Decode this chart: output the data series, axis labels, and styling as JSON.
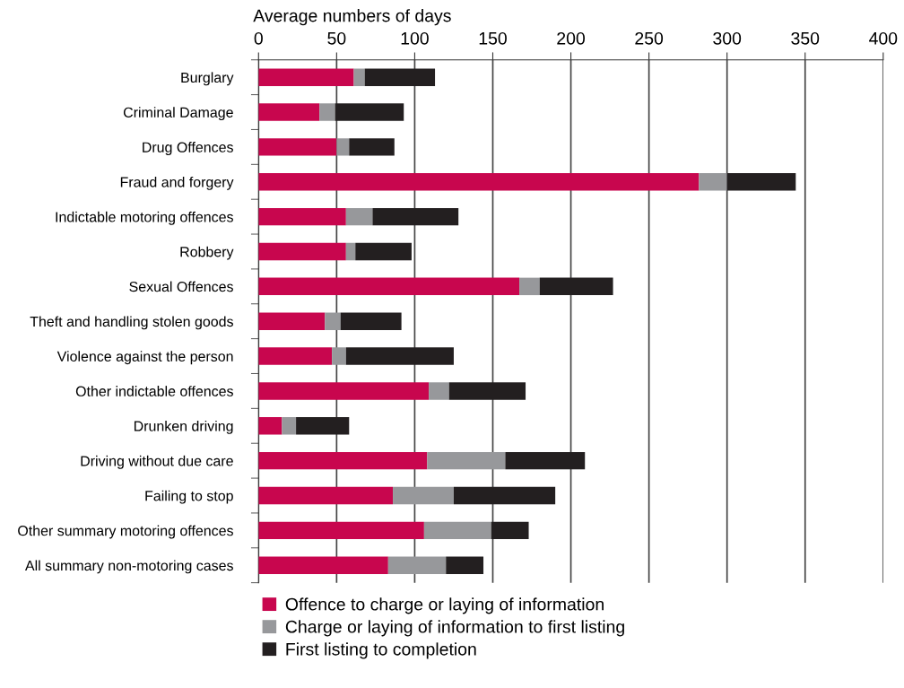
{
  "chart_data": {
    "type": "bar",
    "orientation": "horizontal",
    "stacked": true,
    "xlabel": "Average numbers of days",
    "categories": [
      "Burglary",
      "Criminal Damage",
      "Drug Offences",
      "Fraud and forgery",
      "Indictable motoring offences",
      "Robbery",
      "Sexual Offences",
      "Theft and handling stolen goods",
      "Violence against the person",
      "Other indictable offences",
      "Drunken driving",
      "Driving without due care",
      "Failing to stop",
      "Other summary motoring offences",
      "All summary non-motoring cases"
    ],
    "series": [
      {
        "name": "Offence to charge or laying of information",
        "color": "#c8064e",
        "values": [
          61,
          39,
          50,
          282,
          56,
          56,
          167,
          42.5,
          47,
          109,
          15,
          108,
          86,
          106,
          83
        ]
      },
      {
        "name": "Charge or laying of information to first listing",
        "color": "#97989b",
        "values": [
          7,
          10,
          8,
          18,
          17,
          6,
          13,
          10,
          9,
          13,
          9,
          50,
          39,
          43,
          37
        ]
      },
      {
        "name": "First listing to completion",
        "color": "#231f20",
        "values": [
          45,
          44,
          29,
          44,
          55,
          36,
          47,
          39,
          69,
          49,
          34,
          51,
          65,
          24,
          24
        ]
      }
    ],
    "xlim": [
      0,
      400
    ],
    "xticks": [
      0,
      50,
      100,
      150,
      200,
      250,
      300,
      350,
      400
    ],
    "grid": "x",
    "legend": "bottom left"
  }
}
